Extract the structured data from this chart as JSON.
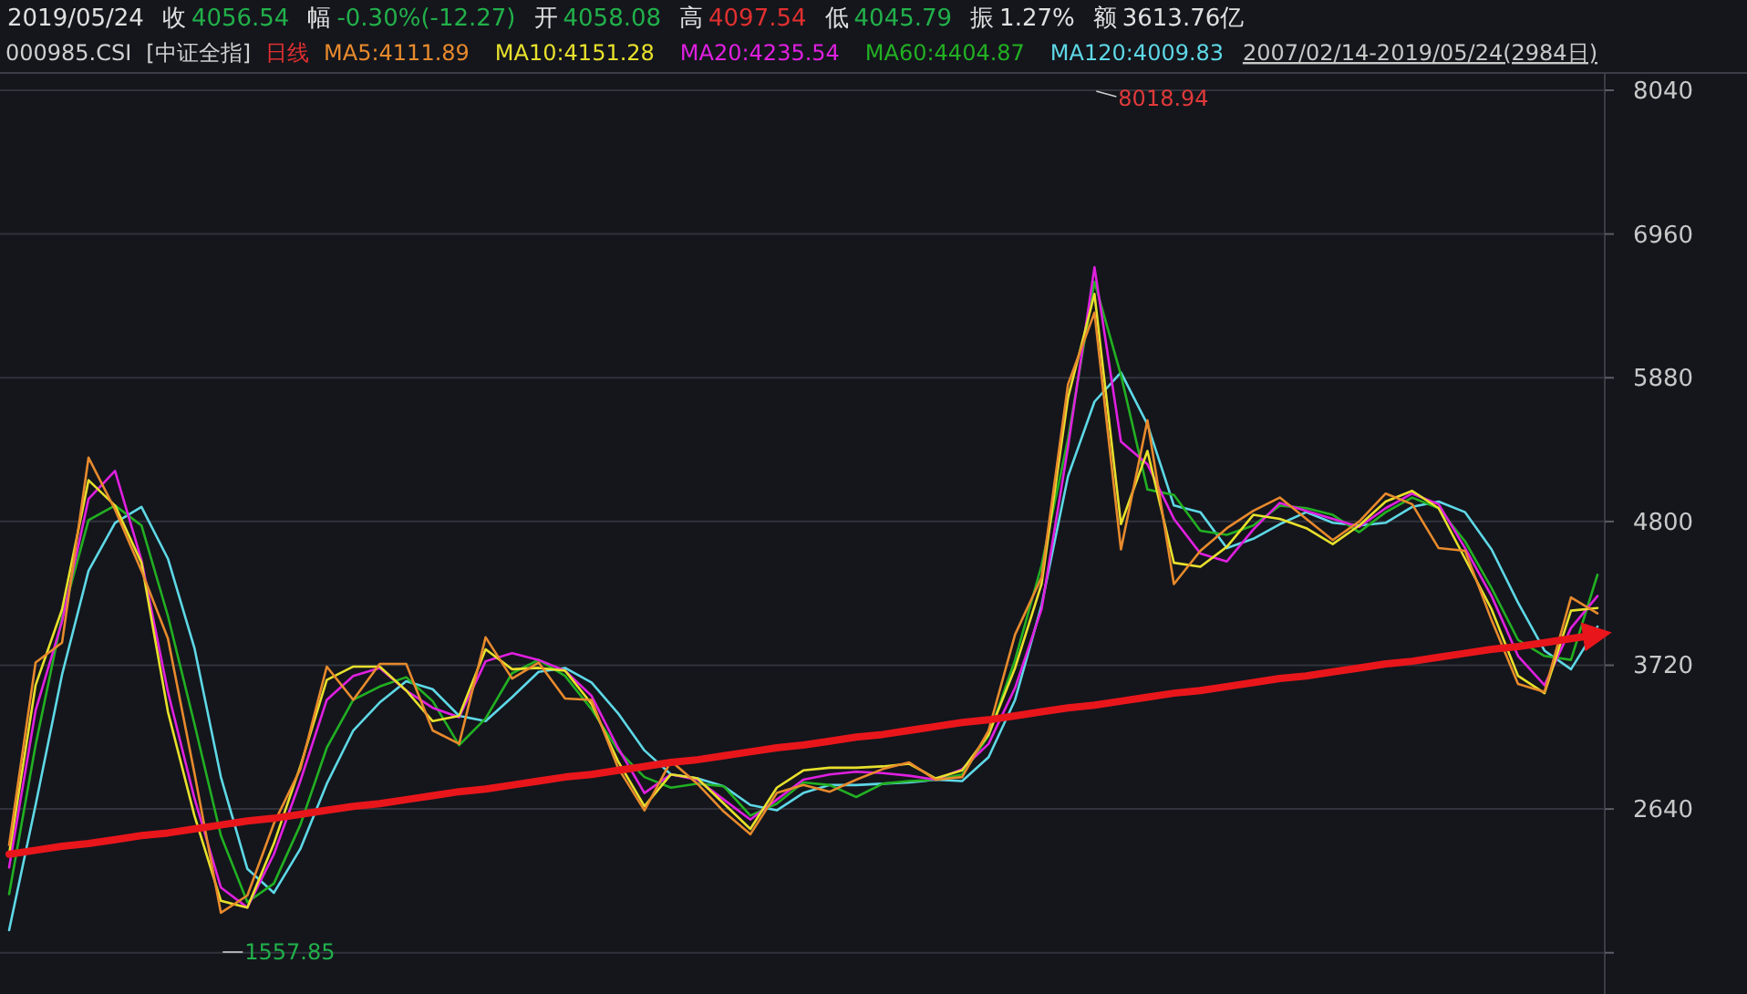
{
  "chart_data": {
    "type": "line",
    "annotations": [
      "2019/05/24",
      "收",
      "4056.54",
      "幅",
      "-0.30%(-12.27)",
      "开",
      "4058.08",
      "高",
      "4097.54",
      "低",
      "4045.79",
      "振",
      "1.27%",
      "额",
      "3613.76亿",
      "000985.CSI",
      "[中证全指]",
      "日线",
      "2007/02/14-2019/05/24(2984日)",
      "8018.94",
      "1557.85"
    ],
    "categories": [
      null,
      null,
      null,
      null,
      null,
      null,
      null,
      null,
      null,
      null,
      null,
      null,
      null,
      null,
      null,
      null,
      null,
      null,
      null,
      null,
      null,
      null,
      null,
      null,
      null,
      null,
      null,
      null,
      null,
      null,
      null,
      null,
      null,
      null,
      null,
      null,
      null,
      null,
      null,
      null,
      null,
      null,
      null,
      null,
      null,
      null,
      null,
      null,
      null,
      null,
      null,
      null,
      null,
      null,
      null,
      null,
      null,
      null,
      null,
      null,
      null
    ],
    "series": [
      {
        "name": "MA5:4111.89",
        "color": "#e88a2c",
        "values": [
          2370,
          3740,
          3890,
          5280,
          4890,
          4430,
          3920,
          2910,
          1860,
          1990,
          2530,
          2940,
          3710,
          3460,
          3730,
          3730,
          3230,
          3130,
          3930,
          3620,
          3740,
          3470,
          3460,
          2950,
          2630,
          3000,
          2830,
          2620,
          2450,
          2760,
          2820,
          2770,
          2860,
          2940,
          2990,
          2860,
          2880,
          3230,
          3950,
          4380,
          5830,
          6370,
          4590,
          5560,
          4330,
          4580,
          4750,
          4880,
          4980,
          4820,
          4660,
          4800,
          5010,
          4930,
          4600,
          4580,
          4060,
          3580,
          3520,
          4230,
          4110
        ]
      },
      {
        "name": "MA10:4151.28",
        "color": "#e8e02c",
        "values": [
          2300,
          3570,
          4140,
          5110,
          4920,
          4490,
          3370,
          2590,
          1950,
          1900,
          2380,
          2960,
          3610,
          3710,
          3710,
          3530,
          3300,
          3340,
          3840,
          3690,
          3700,
          3680,
          3430,
          3000,
          2660,
          2900,
          2870,
          2680,
          2490,
          2800,
          2930,
          2950,
          2950,
          2960,
          2980,
          2870,
          2930,
          3200,
          3700,
          4330,
          5730,
          6510,
          4780,
          5330,
          4490,
          4460,
          4610,
          4850,
          4820,
          4750,
          4630,
          4770,
          4950,
          5030,
          4900,
          4520,
          4140,
          3640,
          3510,
          4130,
          4150
        ]
      },
      {
        "name": "MA20:4235.54",
        "color": "#e020e0",
        "values": [
          2200,
          3380,
          4050,
          4970,
          5180,
          4510,
          3520,
          2720,
          2050,
          1900,
          2300,
          2850,
          3460,
          3640,
          3700,
          3530,
          3400,
          3330,
          3750,
          3810,
          3760,
          3680,
          3490,
          3100,
          2760,
          2900,
          2860,
          2710,
          2560,
          2710,
          2860,
          2900,
          2920,
          2910,
          2890,
          2860,
          2940,
          3130,
          3550,
          4140,
          5360,
          6710,
          5400,
          5230,
          4820,
          4560,
          4500,
          4740,
          4940,
          4880,
          4820,
          4760,
          4900,
          5010,
          4930,
          4600,
          4240,
          3790,
          3570,
          4000,
          4240
        ]
      },
      {
        "name": "MA60:4404.87",
        "color": "#22b022",
        "values": [
          2000,
          3120,
          4080,
          4810,
          4920,
          4770,
          4090,
          3280,
          2440,
          1940,
          2080,
          2520,
          3100,
          3460,
          3560,
          3630,
          3450,
          3120,
          3320,
          3660,
          3760,
          3640,
          3390,
          3080,
          2880,
          2800,
          2830,
          2810,
          2590,
          2680,
          2840,
          2820,
          2730,
          2830,
          2850,
          2860,
          2900,
          3190,
          3760,
          4470,
          5420,
          6600,
          5900,
          5040,
          5000,
          4730,
          4700,
          4770,
          4920,
          4900,
          4850,
          4720,
          4870,
          4980,
          4900,
          4650,
          4300,
          3910,
          3790,
          3760,
          4400
        ]
      },
      {
        "name": "MA120:4009.83",
        "color": "#5ed8e6",
        "values": [
          1730,
          2670,
          3650,
          4430,
          4790,
          4910,
          4520,
          3850,
          2880,
          2190,
          2010,
          2340,
          2830,
          3230,
          3440,
          3600,
          3540,
          3340,
          3300,
          3480,
          3670,
          3700,
          3590,
          3360,
          3080,
          2900,
          2870,
          2810,
          2670,
          2630,
          2760,
          2820,
          2820,
          2830,
          2840,
          2860,
          2850,
          3030,
          3460,
          4170,
          5140,
          5700,
          5920,
          5530,
          4920,
          4870,
          4600,
          4670,
          4780,
          4870,
          4790,
          4770,
          4790,
          4910,
          4950,
          4870,
          4590,
          4190,
          3830,
          3690,
          4010
        ]
      },
      {
        "type": "line",
        "color": "#e8161b",
        "values": [
          2300,
          2330,
          2360,
          2380,
          2410,
          2440,
          2460,
          2490,
          2520,
          2550,
          2570,
          2600,
          2630,
          2660,
          2680,
          2710,
          2740,
          2770,
          2790,
          2820,
          2850,
          2880,
          2900,
          2930,
          2960,
          2990,
          3010,
          3040,
          3070,
          3100,
          3120,
          3150,
          3180,
          3200,
          3230,
          3260,
          3290,
          3310,
          3340,
          3370,
          3400,
          3420,
          3450,
          3480,
          3510,
          3530,
          3560,
          3590,
          3620,
          3640,
          3670,
          3700,
          3730,
          3750,
          3780,
          3810,
          3840,
          3860,
          3890,
          3920,
          3950
        ]
      }
    ],
    "ylim": [
      1250,
      8170
    ],
    "yticks": [
      {
        "value": 1560,
        "label": null
      },
      2640,
      3720,
      4800,
      5880,
      6960,
      8040
    ],
    "grid": "y",
    "tick_labels": "y"
  }
}
